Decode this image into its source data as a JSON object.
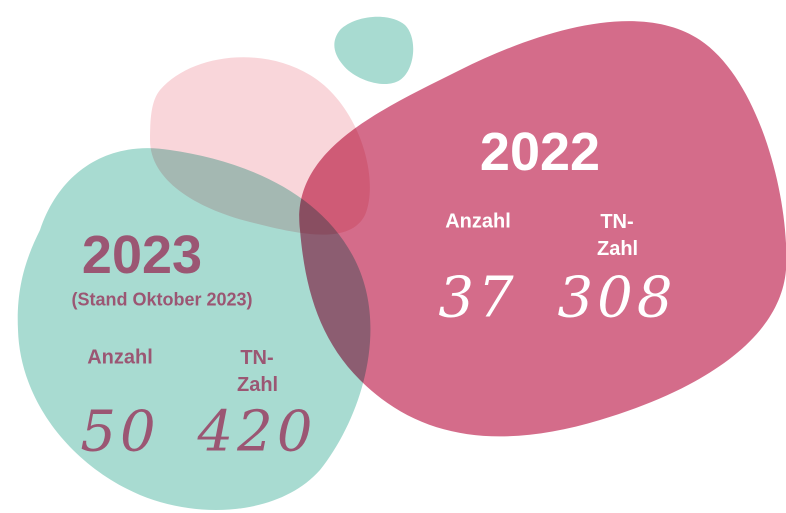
{
  "right": {
    "year": "2022",
    "count_label": "Anzahl",
    "participants_label": "TN-Zahl",
    "count": 37,
    "participants": 308
  },
  "left": {
    "year": "2023",
    "note": "(Stand Oktober 2023)",
    "count_label": "Anzahl",
    "participants_label": "TN-Zahl",
    "count": 50,
    "participants": 420
  }
}
